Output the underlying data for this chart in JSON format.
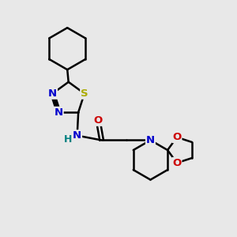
{
  "bg_color": "#e8e8e8",
  "bond_color": "#000000",
  "bond_width": 1.8,
  "atom_colors": {
    "S": "#aaaa00",
    "N": "#0000cc",
    "O": "#cc0000",
    "H": "#008080",
    "C": "#000000"
  },
  "font_size": 9.5,
  "fig_w": 3.0,
  "fig_h": 3.0,
  "dpi": 100
}
